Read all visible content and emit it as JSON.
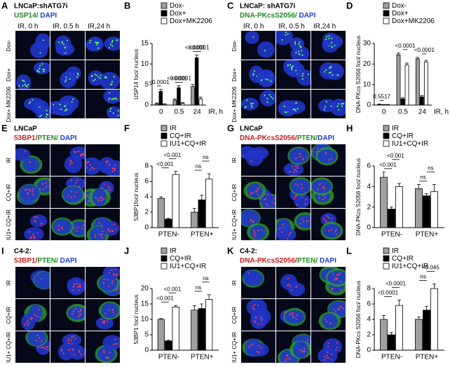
{
  "panels": [
    {
      "label": "A",
      "title": "LNCaP:shATG7i",
      "stain": [
        {
          "text": "USP14/ ",
          "color": "#1a8f1a"
        },
        {
          "text": "DAPI",
          "color": "#1a3fd0"
        }
      ],
      "columns": [
        "IR, 0 h",
        "IR, 0.5 h",
        "IR,24 h"
      ],
      "rows": [
        "Dox-",
        "Dox+",
        "Dox+ MK2206"
      ]
    },
    {
      "label": "C",
      "title": "LNCaP: shATG7i",
      "stain": [
        {
          "text": "DNA-PKcsS2056/ ",
          "color": "#1a8f1a"
        },
        {
          "text": "DAPI",
          "color": "#1a3fd0"
        }
      ],
      "columns": [
        "IR, 0 h",
        "IR, 0.5 h",
        "IR,24 h"
      ],
      "rows": [
        "Dox-",
        "Dox+",
        "Dox+ MK2206"
      ]
    },
    {
      "label": "E",
      "title": "LNCaP",
      "stain": [
        {
          "text": "53BP1/",
          "color": "#d01a1a"
        },
        {
          "text": "PTEN/ ",
          "color": "#1a8f1a"
        },
        {
          "text": "DAPI",
          "color": "#1a3fd0"
        }
      ],
      "rows": [
        "IR",
        "CQ+IR",
        "IU1+ CQ+IR"
      ]
    },
    {
      "label": "G",
      "title": "LNCaP",
      "stain": [
        {
          "text": "DNA-PKcsS2056/",
          "color": "#d01a1a"
        },
        {
          "text": "PTEN/",
          "color": "#1a8f1a"
        },
        {
          "text": "DAPI",
          "color": "#1a3fd0"
        }
      ],
      "rows": [
        "IR",
        "CQ+IR",
        "IU1+ CQ+IR"
      ]
    },
    {
      "label": "I",
      "title": "C4-2:",
      "stain": [
        {
          "text": "53BP1/",
          "color": "#d01a1a"
        },
        {
          "text": "PTEN/ ",
          "color": "#1a8f1a"
        },
        {
          "text": "DAPI",
          "color": "#1a3fd0"
        }
      ],
      "rows": [
        "IR",
        "CQ+IR",
        "IU1+ CQ+IR"
      ]
    },
    {
      "label": "K",
      "title": "C4-2:",
      "stain": [
        {
          "text": "DNA-PKcsS2056/",
          "color": "#d01a1a"
        },
        {
          "text": "PTEN/ ",
          "color": "#1a8f1a"
        },
        {
          "text": "DAPI",
          "color": "#1a3fd0"
        }
      ],
      "rows": [
        "IR",
        "CQ+IR",
        "IU1+ CQ+IR"
      ]
    }
  ],
  "chart_data": [
    {
      "type": "bar",
      "label": "B",
      "ylabel": "USP14 foci/ nucleus",
      "xlabel": "IR, h",
      "categories": [
        "0",
        "0.5",
        "24"
      ],
      "series": [
        {
          "name": "Dox-",
          "color": "#a0a0a0",
          "values": [
            0.3,
            1.2,
            4.5
          ],
          "errors": [
            0.2,
            0.3,
            0.5
          ]
        },
        {
          "name": "Dox+",
          "color": "#000000",
          "values": [
            3.3,
            4.2,
            11.5
          ],
          "errors": [
            0.5,
            0.5,
            0.7
          ]
        },
        {
          "name": "Dox+MK2206",
          "color": "#ffffff",
          "values": [
            0.2,
            0.4,
            1.5
          ],
          "errors": [
            0.1,
            0.2,
            0.4
          ]
        }
      ],
      "ylim": [
        0,
        15
      ],
      "yticks": [
        0,
        5,
        10,
        15
      ],
      "annotations": [
        "<0.0001",
        "<0.0001",
        "<0.0001",
        "<0.0001",
        "<0.0001"
      ]
    },
    {
      "type": "bar",
      "label": "D",
      "ylabel": "DNA-PKcs S2056 foci/ nucleus",
      "xlabel": "IR, h",
      "categories": [
        "0",
        "0.5",
        "24"
      ],
      "series": [
        {
          "name": "Dox-",
          "color": "#a0a0a0",
          "values": [
            0.3,
            24.5,
            22.5
          ],
          "errors": [
            0.2,
            0.8,
            0.7
          ]
        },
        {
          "name": "Dox+",
          "color": "#000000",
          "values": [
            0.2,
            3,
            4
          ],
          "errors": [
            0.1,
            0.5,
            0.6
          ]
        },
        {
          "name": "Dox+MK2206",
          "color": "#ffffff",
          "values": [
            0.2,
            19.5,
            21
          ],
          "errors": [
            0.1,
            0.9,
            0.8
          ]
        }
      ],
      "ylim": [
        0,
        30
      ],
      "yticks": [
        0,
        10,
        20,
        30
      ],
      "annotations": [
        "0.5517",
        "<0.0001",
        "<0.0001"
      ]
    },
    {
      "type": "bar",
      "label": "F",
      "ylabel": "53BP1foci/ nucleus",
      "categories": [
        "PTEN-",
        "PTEN+"
      ],
      "series": [
        {
          "name": "IR",
          "color": "#a0a0a0",
          "values": [
            3.8,
            2.0
          ],
          "errors": [
            0.2,
            0.5
          ]
        },
        {
          "name": "CQ+IR",
          "color": "#000000",
          "values": [
            1.1,
            3.6
          ],
          "errors": [
            0.1,
            0.6
          ]
        },
        {
          "name": "IU1+CQ+IR",
          "color": "#ffffff",
          "values": [
            6.9,
            6.3
          ],
          "errors": [
            0.4,
            0.7
          ]
        }
      ],
      "ylim": [
        0,
        8
      ],
      "yticks": [
        0,
        2,
        4,
        6,
        8
      ],
      "annotations": [
        "<0.001",
        "<0.001",
        "ns",
        "ns"
      ]
    },
    {
      "type": "bar",
      "label": "H",
      "ylabel": "DNA-PKcs S2056 foci/ nucleus",
      "categories": [
        "PTEN-",
        "PTEN+"
      ],
      "series": [
        {
          "name": "IR",
          "color": "#a0a0a0",
          "values": [
            4.9,
            3.8
          ],
          "errors": [
            0.5,
            0.4
          ]
        },
        {
          "name": "CQ+IR",
          "color": "#000000",
          "values": [
            1.8,
            3.1
          ],
          "errors": [
            0.2,
            0.2
          ]
        },
        {
          "name": "IU1+CQ+IR",
          "color": "#ffffff",
          "values": [
            4.0,
            3.5
          ],
          "errors": [
            0.3,
            0.7
          ]
        }
      ],
      "ylim": [
        0,
        6
      ],
      "yticks": [
        0,
        2,
        4,
        6
      ],
      "annotations": [
        "<0.001",
        "<0.001",
        "ns",
        "ns"
      ]
    },
    {
      "type": "bar",
      "label": "J",
      "ylabel": "53BP1 foci/ nucleus",
      "categories": [
        "PTEN-",
        "PTEN+"
      ],
      "series": [
        {
          "name": "IR",
          "color": "#a0a0a0",
          "values": [
            10,
            13
          ],
          "errors": [
            0.3,
            1.5
          ]
        },
        {
          "name": "CQ+IR",
          "color": "#000000",
          "values": [
            3,
            13.5
          ],
          "errors": [
            0.2,
            1.5
          ]
        },
        {
          "name": "IU1+CQ+IR",
          "color": "#ffffff",
          "values": [
            14,
            16.5
          ],
          "errors": [
            0.5,
            1.5
          ]
        }
      ],
      "ylim": [
        0,
        20
      ],
      "yticks": [
        0,
        5,
        10,
        15,
        20
      ],
      "annotations": [
        "<0.001",
        "<0.001",
        "ns",
        "ns"
      ]
    },
    {
      "type": "bar",
      "label": "L",
      "ylabel": "DNA-PKcs S2056 foci/ nucleus",
      "categories": [
        "PTEN-",
        "PTEN+"
      ],
      "series": [
        {
          "name": "IR",
          "color": "#a0a0a0",
          "values": [
            4,
            4
          ],
          "errors": [
            0.5,
            0.3
          ]
        },
        {
          "name": "CQ+IR",
          "color": "#000000",
          "values": [
            2,
            5.2
          ],
          "errors": [
            0.3,
            0.5
          ]
        },
        {
          "name": "IU1+CQ+IR",
          "color": "#ffffff",
          "values": [
            5.8,
            8
          ],
          "errors": [
            0.7,
            0.6
          ]
        }
      ],
      "ylim": [
        0,
        8
      ],
      "yticks": [
        0,
        2,
        4,
        6,
        8
      ],
      "annotations": [
        "<0.0001",
        "<0.0001",
        "ns",
        "<0.045"
      ]
    }
  ]
}
